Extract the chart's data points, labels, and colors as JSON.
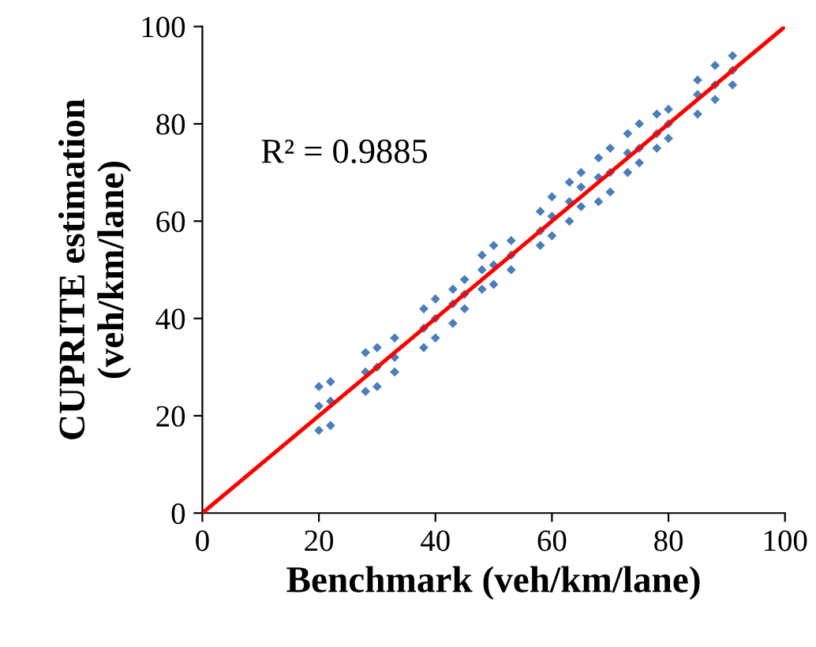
{
  "chart_data": {
    "type": "scatter",
    "xlabel": "Benchmark (veh/km/lane)",
    "ylabel": "CUPRITE estimation\n(veh/km/lane)",
    "annotations": [
      "R² = 0.9885"
    ],
    "xlim": [
      0,
      100
    ],
    "ylim": [
      0,
      100
    ],
    "xticks": [
      0,
      20,
      40,
      60,
      80,
      100
    ],
    "yticks": [
      0,
      20,
      40,
      60,
      80,
      100
    ],
    "marker": "diamond",
    "grid": false,
    "legend": false,
    "series": [
      {
        "color": "#4a7ebb",
        "x": [
          20,
          20,
          20,
          22,
          22,
          22,
          28,
          28,
          28,
          30,
          30,
          30,
          33,
          33,
          33,
          38,
          38,
          38,
          40,
          40,
          40,
          43,
          43,
          43,
          45,
          45,
          45,
          48,
          48,
          48,
          50,
          50,
          50,
          53,
          53,
          53,
          58,
          58,
          58,
          60,
          60,
          60,
          63,
          63,
          63,
          65,
          65,
          65,
          68,
          68,
          68,
          70,
          70,
          70,
          73,
          73,
          73,
          75,
          75,
          75,
          78,
          78,
          78,
          80,
          80,
          80,
          85,
          85,
          85,
          88,
          88,
          88,
          91,
          91,
          91
        ],
        "values": [
          17,
          22,
          26,
          18,
          23,
          27,
          25,
          29,
          33,
          26,
          30,
          34,
          29,
          32,
          36,
          34,
          38,
          42,
          36,
          40,
          44,
          39,
          43,
          46,
          42,
          45,
          48,
          46,
          50,
          53,
          47,
          51,
          55,
          50,
          53,
          56,
          55,
          58,
          62,
          57,
          61,
          65,
          60,
          64,
          68,
          63,
          67,
          70,
          64,
          69,
          73,
          66,
          70,
          75,
          70,
          74,
          78,
          72,
          75,
          80,
          75,
          78,
          82,
          77,
          80,
          83,
          82,
          86,
          89,
          85,
          88,
          92,
          88,
          91,
          94
        ]
      },
      {
        "type": "line",
        "color": "#ff0000",
        "x": [
          0,
          100
        ],
        "values": [
          0,
          100
        ],
        "marker": "none",
        "line_style": "solid"
      }
    ]
  }
}
